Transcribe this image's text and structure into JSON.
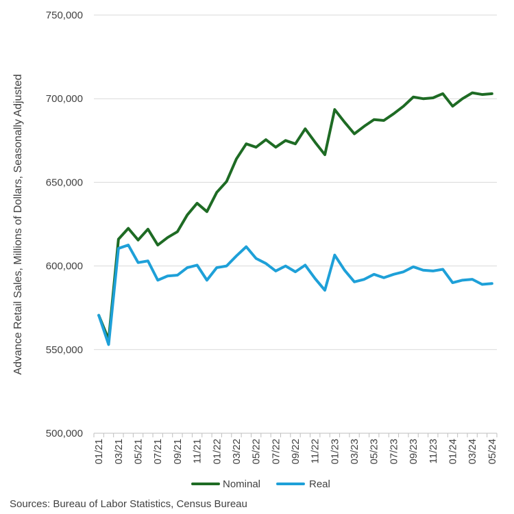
{
  "chart_data": {
    "type": "line",
    "ylabel": "Advance Retail Sales, Millions of Dollars, Seasonally Adjusted",
    "xlabel": "",
    "ylim": [
      500000,
      750000
    ],
    "y_ticks": [
      {
        "value": 500000,
        "label": "500,000"
      },
      {
        "value": 550000,
        "label": "550,000"
      },
      {
        "value": 600000,
        "label": "600,000"
      },
      {
        "value": 650000,
        "label": "650,000"
      },
      {
        "value": 700000,
        "label": "700,000"
      },
      {
        "value": 750000,
        "label": "750,000"
      }
    ],
    "x": [
      "01/21",
      "02/21",
      "03/21",
      "04/21",
      "05/21",
      "06/21",
      "07/21",
      "08/21",
      "09/21",
      "10/21",
      "11/21",
      "12/21",
      "01/22",
      "02/22",
      "03/22",
      "04/22",
      "05/22",
      "06/22",
      "07/22",
      "08/22",
      "09/22",
      "10/22",
      "11/22",
      "12/22",
      "01/23",
      "02/23",
      "03/23",
      "04/23",
      "05/23",
      "06/23",
      "07/23",
      "08/23",
      "09/23",
      "10/23",
      "11/23",
      "12/23",
      "01/24",
      "02/24",
      "03/24",
      "04/24",
      "05/24"
    ],
    "x_tick_labels": [
      "01/21",
      "03/21",
      "05/21",
      "07/21",
      "09/21",
      "11/21",
      "01/22",
      "03/22",
      "05/22",
      "07/22",
      "09/22",
      "11/22",
      "01/23",
      "03/23",
      "05/23",
      "07/23",
      "09/23",
      "11/23",
      "01/24",
      "03/24",
      "05/24"
    ],
    "grid": "horizontal",
    "legend_position": "bottom",
    "series": [
      {
        "name": "Nominal",
        "color": "#1e6b24",
        "values": [
          570500,
          556000,
          616000,
          622500,
          615500,
          622000,
          612500,
          617000,
          620500,
          630500,
          637500,
          632500,
          644000,
          650500,
          664000,
          673000,
          671000,
          675500,
          671000,
          675000,
          673000,
          682000,
          674000,
          666500,
          693500,
          686000,
          679000,
          683500,
          687500,
          687000,
          691000,
          695500,
          701000,
          700000,
          700500,
          703000,
          695500,
          700000,
          703500,
          702500,
          703000
        ]
      },
      {
        "name": "Real",
        "color": "#1ea0d8",
        "values": [
          570500,
          553000,
          610500,
          612500,
          602000,
          603000,
          591500,
          594000,
          594500,
          599000,
          600500,
          591500,
          599000,
          600000,
          606000,
          611500,
          604500,
          601500,
          597000,
          600000,
          596500,
          600500,
          592500,
          585500,
          606500,
          597500,
          590500,
          592000,
          595000,
          593000,
          595000,
          596500,
          599500,
          597500,
          597000,
          598000,
          590000,
          591500,
          592000,
          589000,
          589500
        ]
      }
    ]
  },
  "source_text": "Sources: Bureau of Labor Statistics, Census Bureau"
}
